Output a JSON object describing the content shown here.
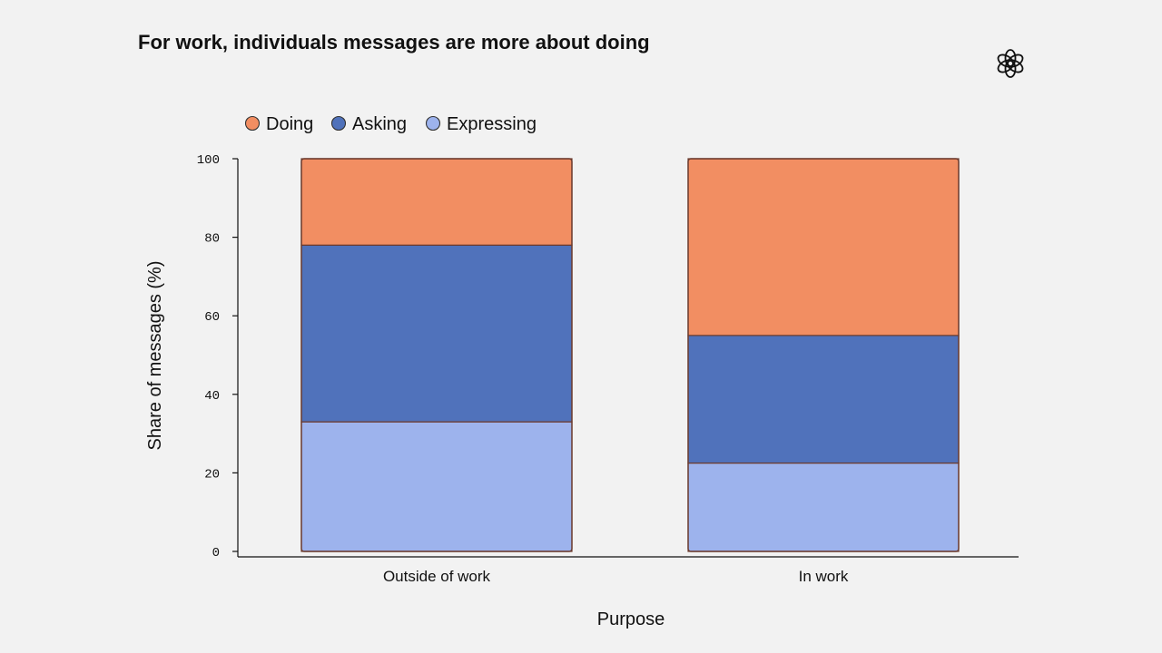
{
  "chart_data": {
    "type": "bar",
    "stacked": true,
    "title": "For work, individuals messages are more about doing",
    "xlabel": "Purpose",
    "ylabel": "Share of messages (%)",
    "ylim": [
      0,
      100
    ],
    "yticks": [
      0,
      20,
      40,
      60,
      80,
      100
    ],
    "categories": [
      "Outside of work",
      "In work"
    ],
    "series": [
      {
        "name": "Expressing",
        "values": [
          33,
          22.5
        ],
        "color": "#9db3ed"
      },
      {
        "name": "Asking",
        "values": [
          45,
          32.5
        ],
        "color": "#5072bb"
      },
      {
        "name": "Doing",
        "values": [
          22,
          45
        ],
        "color": "#f28e62"
      }
    ],
    "legend_order": [
      "Doing",
      "Asking",
      "Expressing"
    ],
    "legend_position": "top-left",
    "grid": false
  },
  "branding": {
    "logo_icon": "openai-logo-icon"
  }
}
